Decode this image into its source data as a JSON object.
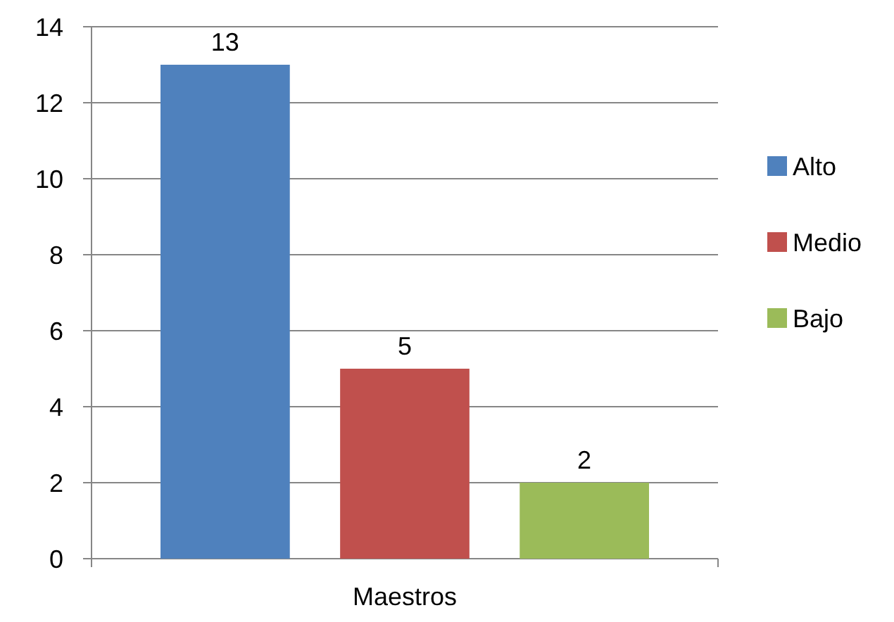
{
  "chart_data": {
    "type": "bar",
    "categories": [
      "Maestros"
    ],
    "series": [
      {
        "name": "Alto",
        "color": "#4f81bd",
        "values": [
          13
        ]
      },
      {
        "name": "Medio",
        "color": "#c0504d",
        "values": [
          5
        ]
      },
      {
        "name": "Bajo",
        "color": "#9bbb59",
        "values": [
          2
        ]
      }
    ],
    "ylim": [
      0,
      14
    ],
    "yticks": [
      0,
      2,
      4,
      6,
      8,
      10,
      12,
      14
    ],
    "grid": "y",
    "legend": "right",
    "data_labels": true
  }
}
